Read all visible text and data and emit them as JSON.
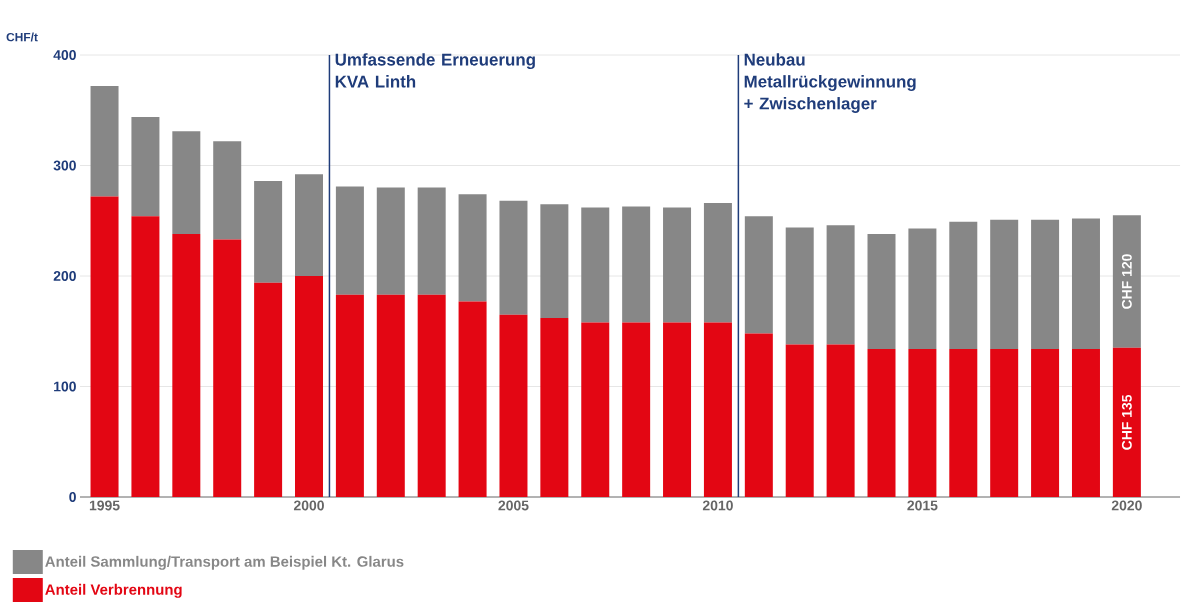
{
  "chart_data": {
    "type": "bar",
    "stacked": true,
    "ylabel": "CHF/t",
    "x": [
      1995,
      1996,
      1997,
      1998,
      1999,
      2000,
      2001,
      2002,
      2003,
      2004,
      2005,
      2006,
      2007,
      2008,
      2009,
      2010,
      2011,
      2012,
      2013,
      2014,
      2015,
      2016,
      2017,
      2018,
      2019,
      2020
    ],
    "series": [
      {
        "name": "Anteil Verbrennung",
        "color": "#e30613",
        "values": [
          272,
          254,
          238,
          233,
          194,
          200,
          183,
          183,
          183,
          177,
          165,
          162,
          158,
          158,
          158,
          158,
          148,
          138,
          138,
          134,
          134,
          134,
          134,
          134,
          134,
          135
        ],
        "value_labels": [
          null,
          null,
          null,
          null,
          null,
          null,
          null,
          null,
          null,
          null,
          null,
          null,
          null,
          null,
          null,
          null,
          null,
          null,
          null,
          null,
          null,
          null,
          null,
          null,
          null,
          "CHF 135"
        ]
      },
      {
        "name": "Anteil Sammlung/Transport am Beispiel Kt. Glarus",
        "color": "#878787",
        "values": [
          100,
          90,
          93,
          89,
          92,
          92,
          98,
          97,
          97,
          97,
          103,
          103,
          104,
          105,
          104,
          108,
          106,
          106,
          108,
          104,
          109,
          115,
          117,
          117,
          118,
          120
        ],
        "value_labels": [
          null,
          null,
          null,
          null,
          null,
          null,
          null,
          null,
          null,
          null,
          null,
          null,
          null,
          null,
          null,
          null,
          null,
          null,
          null,
          null,
          null,
          null,
          null,
          null,
          null,
          "CHF 120"
        ]
      }
    ],
    "xlim": [
      1994.4,
      2021.3
    ],
    "xticks": [
      1995,
      2000,
      2005,
      2010,
      2015,
      2020
    ],
    "ylim": [
      0,
      400
    ],
    "yticks": [
      0,
      100,
      200,
      300,
      400
    ],
    "ref_lines": [
      {
        "axis": "x",
        "value": 2000.5,
        "label": "Umfassende Erneuerung KVA Linth",
        "color": "#1f3c7a"
      },
      {
        "axis": "x",
        "value": 2010.5,
        "label": "Neubau Metallrückgewinnung + Zwischenlager",
        "color": "#1f3c7a"
      }
    ],
    "grid": "y",
    "legend": "bottom left"
  }
}
